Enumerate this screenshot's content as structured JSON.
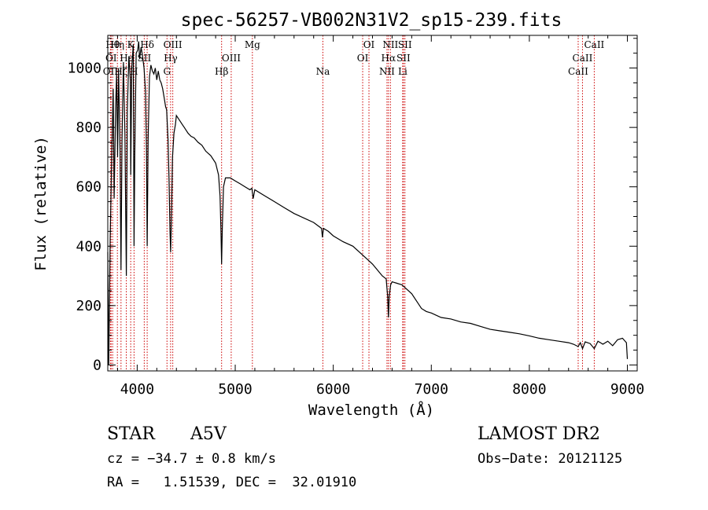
{
  "chart_data": {
    "type": "line",
    "title": "spec-56257-VB002N31V2_sp15-239.fits",
    "xlabel": "Wavelength (Å)",
    "ylabel": "Flux (relative)",
    "xlim": [
      3700,
      9100
    ],
    "ylim": [
      -20,
      1110
    ],
    "x_ticks": [
      4000,
      5000,
      6000,
      7000,
      8000,
      9000
    ],
    "y_ticks": [
      0,
      200,
      400,
      600,
      800,
      1000
    ],
    "grid": false,
    "line_color": "#000000",
    "marker_color": "#cc0000",
    "spectrum": [
      [
        3700,
        380
      ],
      [
        3710,
        0
      ],
      [
        3725,
        430
      ],
      [
        3740,
        700
      ],
      [
        3755,
        930
      ],
      [
        3765,
        560
      ],
      [
        3780,
        870
      ],
      [
        3790,
        980
      ],
      [
        3800,
        700
      ],
      [
        3810,
        1000
      ],
      [
        3825,
        720
      ],
      [
        3835,
        320
      ],
      [
        3845,
        760
      ],
      [
        3860,
        1020
      ],
      [
        3875,
        780
      ],
      [
        3889,
        300
      ],
      [
        3900,
        860
      ],
      [
        3915,
        1040
      ],
      [
        3930,
        960
      ],
      [
        3934,
        640
      ],
      [
        3945,
        1000
      ],
      [
        3960,
        1080
      ],
      [
        3968,
        400
      ],
      [
        3975,
        700
      ],
      [
        3990,
        1050
      ],
      [
        4005,
        1060
      ],
      [
        4015,
        1090
      ],
      [
        4025,
        1030
      ],
      [
        4040,
        1070
      ],
      [
        4055,
        1040
      ],
      [
        4070,
        1000
      ],
      [
        4085,
        920
      ],
      [
        4095,
        720
      ],
      [
        4102,
        400
      ],
      [
        4112,
        760
      ],
      [
        4125,
        970
      ],
      [
        4140,
        1010
      ],
      [
        4155,
        990
      ],
      [
        4170,
        980
      ],
      [
        4185,
        1000
      ],
      [
        4200,
        960
      ],
      [
        4215,
        990
      ],
      [
        4230,
        960
      ],
      [
        4245,
        950
      ],
      [
        4260,
        930
      ],
      [
        4275,
        900
      ],
      [
        4290,
        870
      ],
      [
        4300,
        860
      ],
      [
        4315,
        760
      ],
      [
        4325,
        620
      ],
      [
        4335,
        450
      ],
      [
        4341,
        380
      ],
      [
        4348,
        480
      ],
      [
        4360,
        700
      ],
      [
        4375,
        780
      ],
      [
        4390,
        810
      ],
      [
        4400,
        840
      ],
      [
        4420,
        830
      ],
      [
        4440,
        820
      ],
      [
        4460,
        810
      ],
      [
        4480,
        800
      ],
      [
        4500,
        790
      ],
      [
        4520,
        780
      ],
      [
        4550,
        770
      ],
      [
        4580,
        765
      ],
      [
        4620,
        750
      ],
      [
        4660,
        740
      ],
      [
        4700,
        720
      ],
      [
        4750,
        705
      ],
      [
        4800,
        680
      ],
      [
        4830,
        640
      ],
      [
        4845,
        570
      ],
      [
        4855,
        450
      ],
      [
        4861,
        340
      ],
      [
        4868,
        460
      ],
      [
        4880,
        600
      ],
      [
        4900,
        630
      ],
      [
        4950,
        630
      ],
      [
        5000,
        620
      ],
      [
        5050,
        610
      ],
      [
        5100,
        600
      ],
      [
        5150,
        590
      ],
      [
        5170,
        595
      ],
      [
        5183,
        560
      ],
      [
        5200,
        590
      ],
      [
        5300,
        570
      ],
      [
        5400,
        550
      ],
      [
        5500,
        530
      ],
      [
        5600,
        510
      ],
      [
        5700,
        495
      ],
      [
        5800,
        480
      ],
      [
        5880,
        460
      ],
      [
        5890,
        430
      ],
      [
        5900,
        460
      ],
      [
        5950,
        450
      ],
      [
        6000,
        435
      ],
      [
        6100,
        415
      ],
      [
        6200,
        400
      ],
      [
        6300,
        370
      ],
      [
        6350,
        355
      ],
      [
        6400,
        340
      ],
      [
        6450,
        320
      ],
      [
        6500,
        300
      ],
      [
        6540,
        290
      ],
      [
        6555,
        230
      ],
      [
        6563,
        160
      ],
      [
        6570,
        230
      ],
      [
        6585,
        270
      ],
      [
        6600,
        280
      ],
      [
        6650,
        275
      ],
      [
        6700,
        270
      ],
      [
        6750,
        255
      ],
      [
        6800,
        240
      ],
      [
        6850,
        215
      ],
      [
        6900,
        190
      ],
      [
        6950,
        180
      ],
      [
        7000,
        175
      ],
      [
        7100,
        160
      ],
      [
        7200,
        155
      ],
      [
        7300,
        145
      ],
      [
        7400,
        140
      ],
      [
        7500,
        130
      ],
      [
        7600,
        120
      ],
      [
        7700,
        115
      ],
      [
        7800,
        110
      ],
      [
        7900,
        105
      ],
      [
        8000,
        98
      ],
      [
        8100,
        90
      ],
      [
        8200,
        85
      ],
      [
        8300,
        80
      ],
      [
        8400,
        75
      ],
      [
        8450,
        70
      ],
      [
        8498,
        62
      ],
      [
        8520,
        75
      ],
      [
        8542,
        55
      ],
      [
        8570,
        78
      ],
      [
        8620,
        72
      ],
      [
        8662,
        55
      ],
      [
        8700,
        80
      ],
      [
        8750,
        70
      ],
      [
        8800,
        80
      ],
      [
        8850,
        65
      ],
      [
        8900,
        85
      ],
      [
        8950,
        90
      ],
      [
        8990,
        75
      ],
      [
        9000,
        20
      ]
    ],
    "line_markers": [
      {
        "x": 3727,
        "label": "OII",
        "row": 2
      },
      {
        "x": 3734,
        "label": "OI",
        "row": 1
      },
      {
        "x": 3750,
        "label": "Hθ",
        "row": 0
      },
      {
        "x": 3798,
        "label": "Hη",
        "row": 0
      },
      {
        "x": 3835,
        "label": "Hζ",
        "row": 2
      },
      {
        "x": 3889,
        "label": "Hε",
        "row": 1
      },
      {
        "x": 3934,
        "label": "K",
        "row": 0
      },
      {
        "x": 3968,
        "label": "H",
        "row": 2
      },
      {
        "x": 4072,
        "label": "SII",
        "row": 1
      },
      {
        "x": 4102,
        "label": "Hδ",
        "row": 0
      },
      {
        "x": 4304,
        "label": "G",
        "row": 2
      },
      {
        "x": 4341,
        "label": "Hγ",
        "row": 1
      },
      {
        "x": 4363,
        "label": "OIII",
        "row": 0
      },
      {
        "x": 4861,
        "label": "Hβ",
        "row": 2
      },
      {
        "x": 4959,
        "label": "OIII",
        "row": 1
      },
      {
        "x": 5175,
        "label": "Mg",
        "row": 0
      },
      {
        "x": 5894,
        "label": "Na",
        "row": 2
      },
      {
        "x": 6300,
        "label": "OI",
        "row": 1
      },
      {
        "x": 6364,
        "label": "OI",
        "row": 0
      },
      {
        "x": 6548,
        "label": "NII",
        "row": 2
      },
      {
        "x": 6563,
        "label": "Hα",
        "row": 1
      },
      {
        "x": 6583,
        "label": "NII",
        "row": 0
      },
      {
        "x": 6708,
        "label": "Li",
        "row": 2
      },
      {
        "x": 6716,
        "label": "SII",
        "row": 1
      },
      {
        "x": 6731,
        "label": "SII",
        "row": 0
      },
      {
        "x": 8498,
        "label": "CaII",
        "row": 2
      },
      {
        "x": 8542,
        "label": "CaII",
        "row": 1
      },
      {
        "x": 8662,
        "label": "CaII",
        "row": 0
      }
    ]
  },
  "info": {
    "object_class": "STAR",
    "subclass": "A5V",
    "survey": "LAMOST DR2",
    "redshift_text": "cz = −34.7 ± 0.8 km/s",
    "obs_date_text": "Obs−Date: 20121125",
    "coords_text": "RA =   1.51539, DEC =  32.01910"
  }
}
